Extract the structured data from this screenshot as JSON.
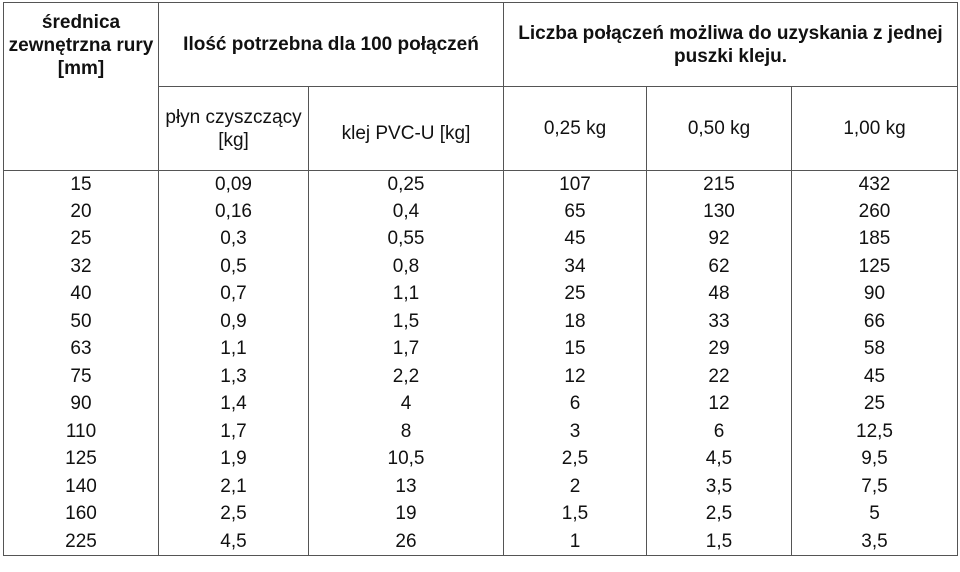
{
  "headers": {
    "diameter": "średnica\nzewnętrzna\nrury [mm]",
    "amount_group": "Ilość potrzebna dla 100\npołączeń",
    "joints_group": "Liczba połączeń możliwa do uzyskania z\njednej puszki kleju."
  },
  "subheaders": [
    "płyn\nczyszczący\n[kg]",
    "klej\nPVC-U [kg]",
    "0,25 kg",
    "0,50 kg",
    "1,00 kg"
  ],
  "rows": [
    [
      "15",
      "0,09",
      "0,25",
      "107",
      "215",
      "432"
    ],
    [
      "20",
      "0,16",
      "0,4",
      "65",
      "130",
      "260"
    ],
    [
      "25",
      "0,3",
      "0,55",
      "45",
      "92",
      "185"
    ],
    [
      "32",
      "0,5",
      "0,8",
      "34",
      "62",
      "125"
    ],
    [
      "40",
      "0,7",
      "1,1",
      "25",
      "48",
      "90"
    ],
    [
      "50",
      "0,9",
      "1,5",
      "18",
      "33",
      "66"
    ],
    [
      "63",
      "1,1",
      "1,7",
      "15",
      "29",
      "58"
    ],
    [
      "75",
      "1,3",
      "2,2",
      "12",
      "22",
      "45"
    ],
    [
      "90",
      "1,4",
      "4",
      "6",
      "12",
      "25"
    ],
    [
      "110",
      "1,7",
      "8",
      "3",
      "6",
      "12,5"
    ],
    [
      "125",
      "1,9",
      "10,5",
      "2,5",
      "4,5",
      "9,5"
    ],
    [
      "140",
      "2,1",
      "13",
      "2",
      "3,5",
      "7,5"
    ],
    [
      "160",
      "2,5",
      "19",
      "1,5",
      "2,5",
      "5"
    ],
    [
      "225",
      "4,5",
      "26",
      "1",
      "1,5",
      "3,5"
    ]
  ]
}
